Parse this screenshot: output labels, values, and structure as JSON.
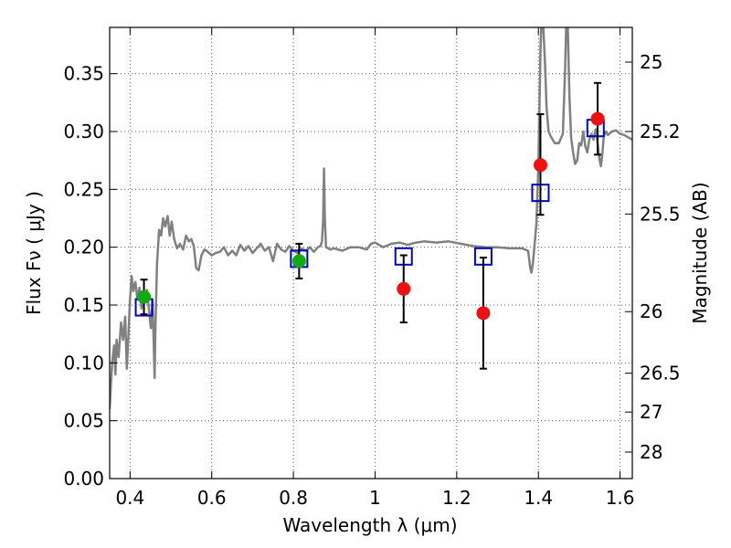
{
  "chart_data": {
    "type": "scatter",
    "xlabel": "Wavelength  λ (μm)",
    "ylabel": "Flux  Fν  ( μJy )",
    "ylabel_right": "Magnitude (AB)",
    "xlim": [
      0.35,
      1.63
    ],
    "ylim": [
      0.0,
      0.39
    ],
    "grid": true,
    "x_ticks": [
      0.4,
      0.6,
      0.8,
      1.0,
      1.2,
      1.4,
      1.6
    ],
    "x_tick_labels": [
      "0.4",
      "0.6",
      "0.8",
      "1",
      "1.2",
      "1.4",
      "1.6"
    ],
    "y_ticks": [
      0.0,
      0.05,
      0.1,
      0.15,
      0.2,
      0.25,
      0.3,
      0.35
    ],
    "y_tick_labels": [
      "0.00",
      "0.05",
      "0.10",
      "0.15",
      "0.20",
      "0.25",
      "0.30",
      "0.35"
    ],
    "right_ticks": [
      {
        "label": "25",
        "flux": 0.36
      },
      {
        "label": "25.2",
        "flux": 0.3
      },
      {
        "label": "25.5",
        "flux": 0.2287
      },
      {
        "label": "26",
        "flux": 0.1443
      },
      {
        "label": "26.5",
        "flux": 0.0911
      },
      {
        "label": "27",
        "flux": 0.0575
      },
      {
        "label": "28",
        "flux": 0.0229
      }
    ],
    "colors": {
      "spectrum": "#808080",
      "model": "#0000cc",
      "measured": "#ee1111",
      "measured_green": "#11aa11",
      "errorbar": "#000000",
      "grid": "#555555"
    },
    "series": [
      {
        "kind": "spectrum",
        "points": [
          [
            0.35,
            0.06
          ],
          [
            0.356,
            0.1
          ],
          [
            0.361,
            0.115
          ],
          [
            0.364,
            0.09
          ],
          [
            0.367,
            0.12
          ],
          [
            0.372,
            0.105
          ],
          [
            0.378,
            0.135
          ],
          [
            0.383,
            0.12
          ],
          [
            0.388,
            0.14
          ],
          [
            0.392,
            0.095
          ],
          [
            0.396,
            0.125
          ],
          [
            0.4,
            0.155
          ],
          [
            0.404,
            0.175
          ],
          [
            0.408,
            0.162
          ],
          [
            0.413,
            0.17
          ],
          [
            0.418,
            0.155
          ],
          [
            0.423,
            0.165
          ],
          [
            0.428,
            0.147
          ],
          [
            0.432,
            0.158
          ],
          [
            0.436,
            0.152
          ],
          [
            0.441,
            0.163
          ],
          [
            0.446,
            0.147
          ],
          [
            0.451,
            0.13
          ],
          [
            0.455,
            0.155
          ],
          [
            0.458,
            0.115
          ],
          [
            0.46,
            0.087
          ],
          [
            0.462,
            0.13
          ],
          [
            0.466,
            0.185
          ],
          [
            0.471,
            0.215
          ],
          [
            0.476,
            0.21
          ],
          [
            0.481,
            0.225
          ],
          [
            0.486,
            0.218
          ],
          [
            0.492,
            0.227
          ],
          [
            0.497,
            0.21
          ],
          [
            0.502,
            0.222
          ],
          [
            0.508,
            0.207
          ],
          [
            0.515,
            0.199
          ],
          [
            0.522,
            0.203
          ],
          [
            0.53,
            0.198
          ],
          [
            0.537,
            0.21
          ],
          [
            0.544,
            0.205
          ],
          [
            0.55,
            0.207
          ],
          [
            0.556,
            0.201
          ],
          [
            0.562,
            0.182
          ],
          [
            0.568,
            0.18
          ],
          [
            0.575,
            0.193
          ],
          [
            0.582,
            0.198
          ],
          [
            0.59,
            0.196
          ],
          [
            0.6,
            0.193
          ],
          [
            0.61,
            0.195
          ],
          [
            0.62,
            0.196
          ],
          [
            0.63,
            0.2
          ],
          [
            0.64,
            0.193
          ],
          [
            0.65,
            0.197
          ],
          [
            0.66,
            0.193
          ],
          [
            0.67,
            0.202
          ],
          [
            0.68,
            0.197
          ],
          [
            0.69,
            0.201
          ],
          [
            0.7,
            0.195
          ],
          [
            0.71,
            0.199
          ],
          [
            0.72,
            0.203
          ],
          [
            0.73,
            0.197
          ],
          [
            0.74,
            0.2
          ],
          [
            0.75,
            0.188
          ],
          [
            0.76,
            0.203
          ],
          [
            0.77,
            0.198
          ],
          [
            0.78,
            0.196
          ],
          [
            0.79,
            0.201
          ],
          [
            0.8,
            0.197
          ],
          [
            0.81,
            0.195
          ],
          [
            0.82,
            0.199
          ],
          [
            0.83,
            0.197
          ],
          [
            0.84,
            0.2
          ],
          [
            0.85,
            0.196
          ],
          [
            0.86,
            0.2
          ],
          [
            0.866,
            0.201
          ],
          [
            0.87,
            0.205
          ],
          [
            0.873,
            0.225
          ],
          [
            0.875,
            0.268
          ],
          [
            0.877,
            0.225
          ],
          [
            0.88,
            0.2
          ],
          [
            0.89,
            0.198
          ],
          [
            0.9,
            0.199
          ],
          [
            0.92,
            0.197
          ],
          [
            0.94,
            0.2
          ],
          [
            0.96,
            0.2
          ],
          [
            0.98,
            0.198
          ],
          [
            0.99,
            0.203
          ],
          [
            1.0,
            0.204
          ],
          [
            1.02,
            0.2
          ],
          [
            1.04,
            0.203
          ],
          [
            1.06,
            0.204
          ],
          [
            1.08,
            0.202
          ],
          [
            1.1,
            0.204
          ],
          [
            1.12,
            0.205
          ],
          [
            1.15,
            0.204
          ],
          [
            1.18,
            0.205
          ],
          [
            1.21,
            0.203
          ],
          [
            1.24,
            0.201
          ],
          [
            1.27,
            0.2
          ],
          [
            1.3,
            0.2
          ],
          [
            1.33,
            0.199
          ],
          [
            1.36,
            0.199
          ],
          [
            1.375,
            0.197
          ],
          [
            1.38,
            0.182
          ],
          [
            1.383,
            0.178
          ],
          [
            1.386,
            0.185
          ],
          [
            1.39,
            0.2
          ],
          [
            1.395,
            0.22
          ],
          [
            1.4,
            0.27
          ],
          [
            1.405,
            0.37
          ],
          [
            1.407,
            0.39
          ],
          [
            1.412,
            0.39
          ],
          [
            1.416,
            0.36
          ],
          [
            1.42,
            0.32
          ],
          [
            1.425,
            0.3
          ],
          [
            1.43,
            0.296
          ],
          [
            1.44,
            0.29
          ],
          [
            1.45,
            0.29
          ],
          [
            1.46,
            0.298
          ],
          [
            1.465,
            0.35
          ],
          [
            1.468,
            0.39
          ],
          [
            1.472,
            0.39
          ],
          [
            1.476,
            0.33
          ],
          [
            1.48,
            0.295
          ],
          [
            1.485,
            0.282
          ],
          [
            1.49,
            0.272
          ],
          [
            1.495,
            0.275
          ],
          [
            1.5,
            0.29
          ],
          [
            1.505,
            0.288
          ],
          [
            1.51,
            0.3
          ],
          [
            1.515,
            0.287
          ],
          [
            1.52,
            0.282
          ],
          [
            1.525,
            0.294
          ],
          [
            1.53,
            0.298
          ],
          [
            1.535,
            0.293
          ],
          [
            1.54,
            0.302
          ],
          [
            1.545,
            0.29
          ],
          [
            1.55,
            0.275
          ],
          [
            1.553,
            0.27
          ],
          [
            1.557,
            0.282
          ],
          [
            1.56,
            0.296
          ],
          [
            1.565,
            0.3
          ],
          [
            1.57,
            0.297
          ],
          [
            1.58,
            0.3
          ],
          [
            1.59,
            0.301
          ],
          [
            1.6,
            0.298
          ],
          [
            1.61,
            0.297
          ],
          [
            1.62,
            0.295
          ],
          [
            1.63,
            0.293
          ]
        ]
      },
      {
        "kind": "model",
        "marker": "open-square",
        "points": [
          [
            0.434,
            0.148
          ],
          [
            0.814,
            0.19
          ],
          [
            1.07,
            0.192
          ],
          [
            1.265,
            0.192
          ],
          [
            1.405,
            0.247
          ],
          [
            1.54,
            0.303
          ]
        ]
      },
      {
        "kind": "measured",
        "marker": "filled-circle",
        "points": [
          {
            "x": 0.434,
            "y": 0.157,
            "yerr_low": 0.142,
            "yerr_high": 0.172,
            "color": "#11aa11"
          },
          {
            "x": 0.814,
            "y": 0.188,
            "yerr_low": 0.173,
            "yerr_high": 0.203,
            "color": "#11aa11"
          },
          {
            "x": 1.07,
            "y": 0.164,
            "yerr_low": 0.135,
            "yerr_high": 0.193,
            "color": "#ee1111"
          },
          {
            "x": 1.265,
            "y": 0.143,
            "yerr_low": 0.095,
            "yerr_high": 0.191,
            "color": "#ee1111"
          },
          {
            "x": 1.405,
            "y": 0.271,
            "yerr_low": 0.228,
            "yerr_high": 0.315,
            "color": "#ee1111"
          },
          {
            "x": 1.545,
            "y": 0.311,
            "yerr_low": 0.28,
            "yerr_high": 0.342,
            "color": "#ee1111"
          }
        ]
      }
    ]
  }
}
